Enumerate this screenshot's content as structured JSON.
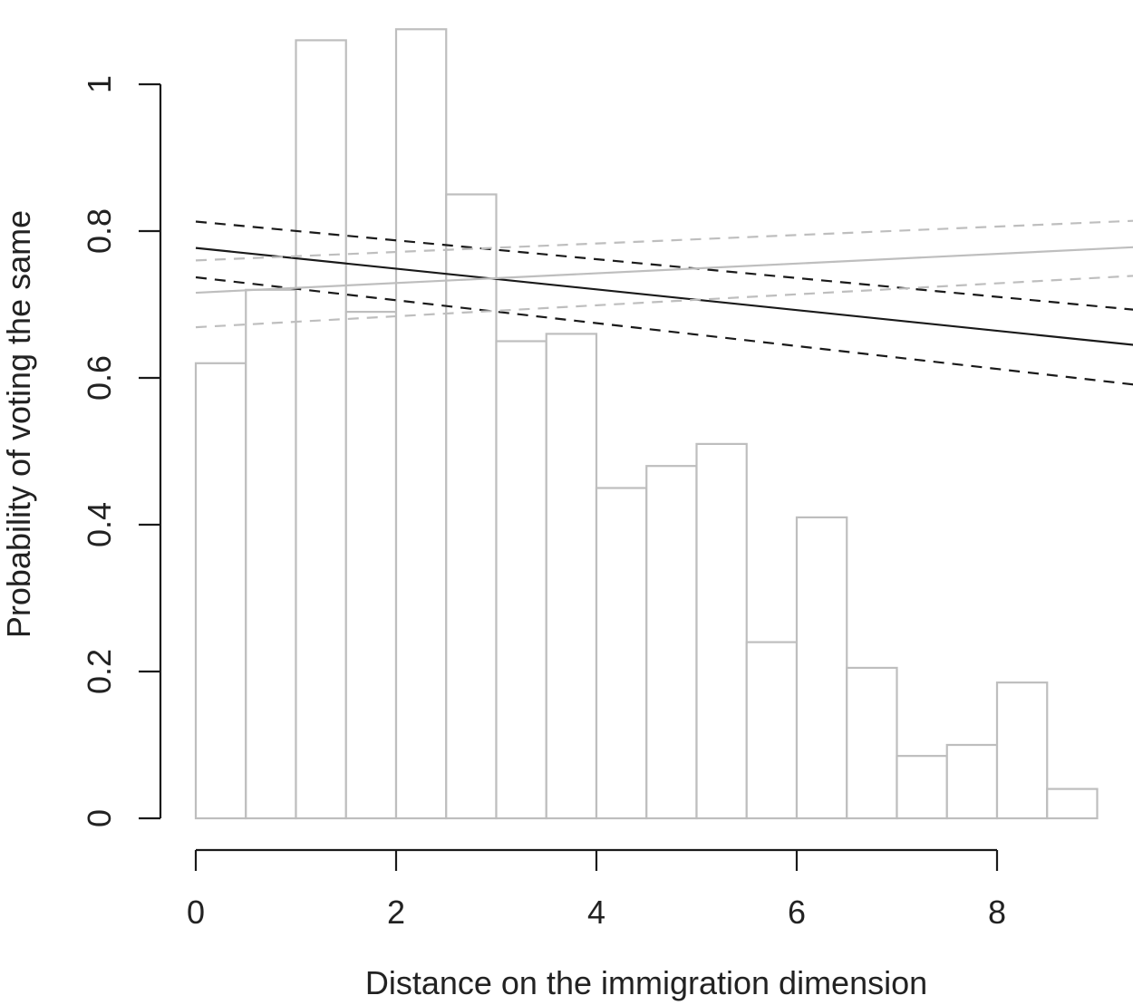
{
  "chart_data": {
    "type": "bar",
    "subtype": "histogram with overlaid regression lines",
    "title": "",
    "xlabel": "Distance on the immigration dimension",
    "ylabel": "Probability of voting the same",
    "xlim": [
      0,
      9.36
    ],
    "ylim": [
      0,
      1.08
    ],
    "grid": false,
    "legend": null,
    "x_ticks": [
      0,
      2,
      4,
      6,
      8
    ],
    "x_tick_labels": [
      "0",
      "2",
      "4",
      "6",
      "8"
    ],
    "y_ticks": [
      0,
      0.2,
      0.4,
      0.6,
      0.8,
      1
    ],
    "y_tick_labels": [
      "0",
      "0.2",
      "0.4",
      "0.6",
      "0.8",
      "1"
    ],
    "histogram": {
      "bin_width": 0.5,
      "bin_starts": [
        0,
        0.5,
        1,
        1.5,
        2,
        2.5,
        3,
        3.5,
        4,
        4.5,
        5,
        5.5,
        6,
        6.5,
        7,
        7.5,
        8,
        8.5
      ],
      "heights": [
        0.62,
        0.72,
        1.06,
        0.69,
        1.075,
        0.85,
        0.65,
        0.66,
        0.45,
        0.48,
        0.51,
        0.24,
        0.41,
        0.205,
        0.085,
        0.1,
        0.185,
        0.04
      ],
      "color": "#bebebe"
    },
    "series": [
      {
        "name": "black fit",
        "style": "solid",
        "color": "#1a1a1a",
        "x": [
          0,
          9.36
        ],
        "values": [
          0.777,
          0.645
        ]
      },
      {
        "name": "black upper CI",
        "style": "dashed",
        "color": "#1a1a1a",
        "x": [
          0,
          9.36
        ],
        "values": [
          0.813,
          0.693
        ]
      },
      {
        "name": "black lower CI",
        "style": "dashed",
        "color": "#1a1a1a",
        "x": [
          0,
          9.36
        ],
        "values": [
          0.737,
          0.591
        ]
      },
      {
        "name": "grey fit",
        "style": "solid",
        "color": "#bebebe",
        "x": [
          0,
          9.36
        ],
        "values": [
          0.716,
          0.778
        ]
      },
      {
        "name": "grey upper CI",
        "style": "dashed",
        "color": "#bebebe",
        "x": [
          0,
          9.36
        ],
        "values": [
          0.76,
          0.814
        ]
      },
      {
        "name": "grey lower CI",
        "style": "dashed",
        "color": "#bebebe",
        "x": [
          0,
          9.36
        ],
        "values": [
          0.669,
          0.739
        ]
      }
    ]
  }
}
